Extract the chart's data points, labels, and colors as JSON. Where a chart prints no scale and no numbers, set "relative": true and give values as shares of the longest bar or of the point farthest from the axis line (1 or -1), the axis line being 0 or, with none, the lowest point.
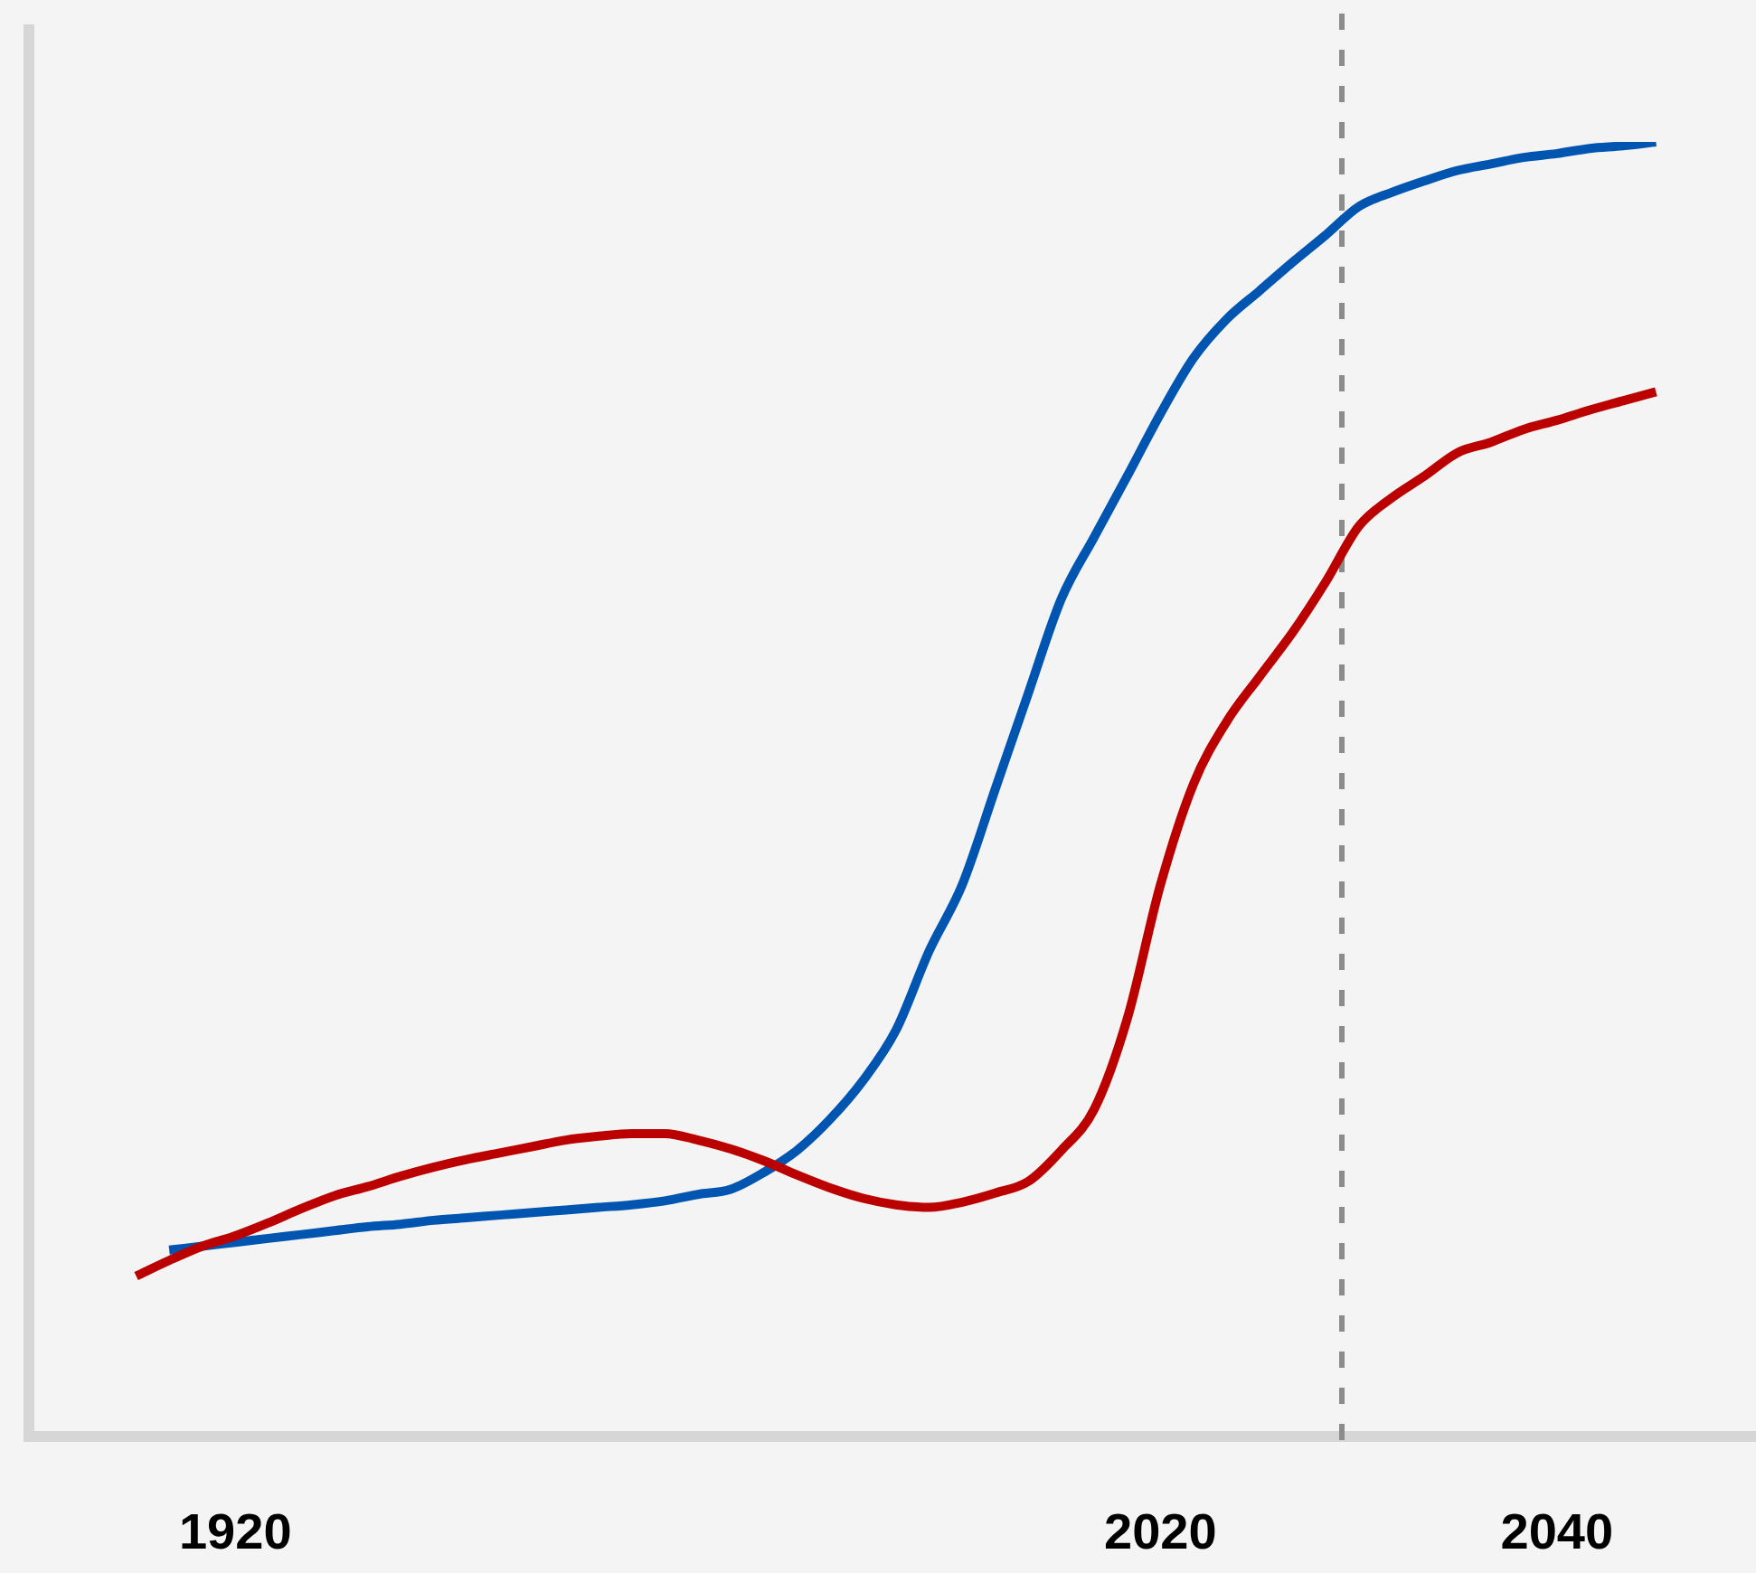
{
  "chart_data": {
    "type": "line",
    "relative": true,
    "legend": false,
    "grid": false,
    "marker": "none",
    "line_style": "solid",
    "categories": [
      null,
      null,
      null,
      null,
      null,
      null,
      "1920",
      null,
      null,
      null,
      null,
      null,
      null,
      null,
      null,
      null,
      null,
      null,
      null,
      null,
      null,
      null,
      null,
      null,
      null,
      null,
      null,
      null,
      null,
      null,
      null,
      null,
      null,
      null,
      "2020",
      null,
      null,
      null,
      null,
      null,
      null,
      null,
      null,
      null,
      null,
      null,
      "2040",
      null,
      null,
      null,
      null,
      null,
      null
    ],
    "series": [
      {
        "color": "#bb0000",
        "values": [
          null,
          null,
          null,
          0.124,
          0.136,
          0.147,
          0.155,
          0.165,
          0.176,
          0.186,
          0.193,
          0.201,
          0.208,
          0.214,
          0.219,
          0.224,
          0.229,
          0.232,
          0.234,
          0.234,
          0.229,
          0.222,
          0.213,
          0.202,
          0.192,
          0.184,
          0.179,
          0.177,
          0.181,
          0.188,
          0.197,
          0.221,
          0.253,
          0.323,
          0.426,
          0.504,
          0.552,
          0.587,
          0.621,
          0.66,
          0.703,
          0.725,
          0.742,
          0.76,
          0.768,
          0.778,
          0.785,
          0.793,
          0.8,
          0.807,
          null,
          null,
          null
        ]
      },
      {
        "color": "#0055b0",
        "values": [
          null,
          null,
          null,
          null,
          0.144,
          0.147,
          0.15,
          0.153,
          0.156,
          0.159,
          0.162,
          0.164,
          0.167,
          0.169,
          0.171,
          0.173,
          0.175,
          0.177,
          0.179,
          0.182,
          0.187,
          0.191,
          0.204,
          0.221,
          0.245,
          0.275,
          0.314,
          0.375,
          0.426,
          0.5,
          0.574,
          0.647,
          0.695,
          0.742,
          0.79,
          0.833,
          0.863,
          0.885,
          0.907,
          0.928,
          0.95,
          0.961,
          0.97,
          0.978,
          0.983,
          0.988,
          0.991,
          0.995,
          0.997,
          1,
          null,
          null,
          null
        ]
      }
    ]
  }
}
